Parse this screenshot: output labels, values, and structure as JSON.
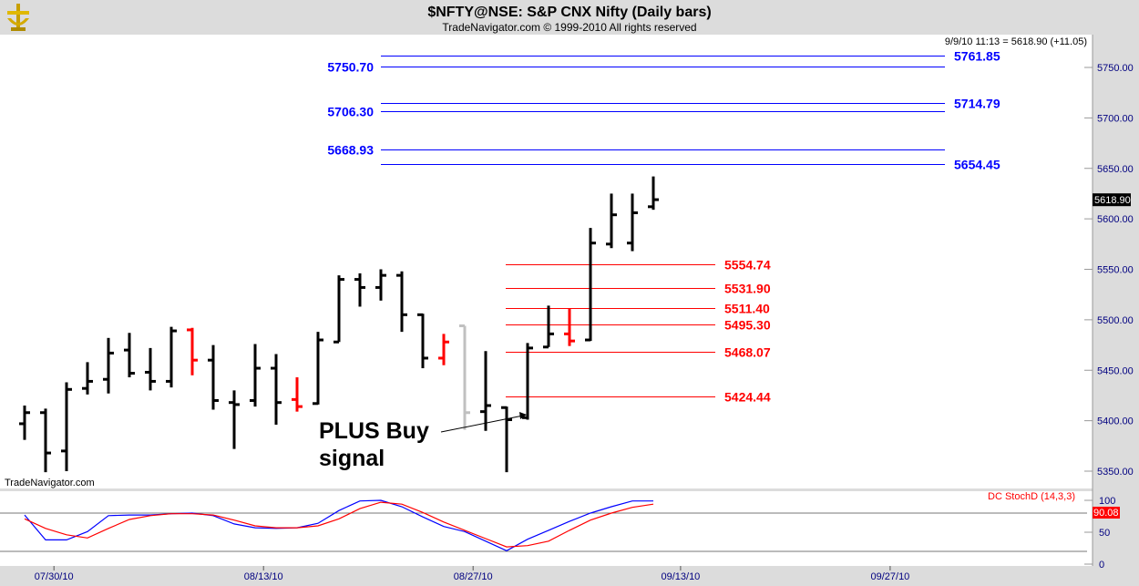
{
  "header": {
    "title": "$NFTY@NSE:  S&P CNX Nifty  (Daily bars)",
    "subtitle": "TradeNavigator.com © 1999-2010 All rights reserved"
  },
  "quote": "9/9/10 11:13 = 5618.90 (+11.05)",
  "watermark": "TradeNavigator.com",
  "annotation": "PLUS Buy signal",
  "annotation_lines": [
    "PLUS Buy",
    "signal"
  ],
  "chart_data": {
    "type": "ohlc",
    "title": "$NFTY@NSE:  S&P CNX Nifty  (Daily bars)",
    "ylim": [
      5330,
      5775
    ],
    "yticks": [
      5350,
      5400,
      5450,
      5500,
      5550,
      5600,
      5650,
      5700,
      5750
    ],
    "ytick_labels": [
      "5350.00",
      "5400.00",
      "5450.00",
      "5500.00",
      "5550.00",
      "5600.00",
      "5650.00",
      "5700.00",
      "5750.00"
    ],
    "last_price_label": "5618.90",
    "x_labels": [
      {
        "label": "07/30/10",
        "bar": 1.4
      },
      {
        "label": "08/13/10",
        "bar": 11.4
      },
      {
        "label": "08/27/10",
        "bar": 21.4
      },
      {
        "label": "09/13/10",
        "bar": 31.3
      },
      {
        "label": "09/27/10",
        "bar": 41.3
      }
    ],
    "bars": [
      {
        "o": 5397,
        "h": 5415,
        "l": 5381,
        "c": 5408,
        "color": "black"
      },
      {
        "o": 5408,
        "h": 5412,
        "l": 5349,
        "c": 5368,
        "color": "black"
      },
      {
        "o": 5370,
        "h": 5438,
        "l": 5350,
        "c": 5431,
        "color": "black"
      },
      {
        "o": 5432,
        "h": 5458,
        "l": 5426,
        "c": 5439,
        "color": "black"
      },
      {
        "o": 5441,
        "h": 5482,
        "l": 5427,
        "c": 5467,
        "color": "black"
      },
      {
        "o": 5470,
        "h": 5487,
        "l": 5443,
        "c": 5447,
        "color": "black"
      },
      {
        "o": 5448,
        "h": 5472,
        "l": 5430,
        "c": 5439,
        "color": "black"
      },
      {
        "o": 5439,
        "h": 5493,
        "l": 5433,
        "c": 5489,
        "color": "black"
      },
      {
        "o": 5490,
        "h": 5492,
        "l": 5445,
        "c": 5460,
        "color": "red"
      },
      {
        "o": 5460,
        "h": 5475,
        "l": 5411,
        "c": 5420,
        "color": "black"
      },
      {
        "o": 5418,
        "h": 5430,
        "l": 5372,
        "c": 5416,
        "color": "black"
      },
      {
        "o": 5420,
        "h": 5476,
        "l": 5414,
        "c": 5452,
        "color": "black"
      },
      {
        "o": 5452,
        "h": 5466,
        "l": 5396,
        "c": 5418,
        "color": "black"
      },
      {
        "o": 5421,
        "h": 5443,
        "l": 5409,
        "c": 5414,
        "color": "red"
      },
      {
        "o": 5417,
        "h": 5488,
        "l": 5416,
        "c": 5480,
        "color": "black"
      },
      {
        "o": 5478,
        "h": 5544,
        "l": 5478,
        "c": 5540,
        "color": "black"
      },
      {
        "o": 5540,
        "h": 5546,
        "l": 5513,
        "c": 5532,
        "color": "black"
      },
      {
        "o": 5532,
        "h": 5550,
        "l": 5519,
        "c": 5544,
        "color": "black"
      },
      {
        "o": 5544,
        "h": 5548,
        "l": 5488,
        "c": 5505,
        "color": "black"
      },
      {
        "o": 5505,
        "h": 5506,
        "l": 5452,
        "c": 5462,
        "color": "black"
      },
      {
        "o": 5462,
        "h": 5486,
        "l": 5455,
        "c": 5478,
        "color": "red"
      },
      {
        "o": 5494,
        "h": 5494,
        "l": 5391,
        "c": 5408,
        "color": "#c0c0c0"
      },
      {
        "o": 5409,
        "h": 5469,
        "l": 5390,
        "c": 5415,
        "color": "black"
      },
      {
        "o": 5413,
        "h": 5414,
        "l": 5349,
        "c": 5401,
        "color": "black"
      },
      {
        "o": 5403,
        "h": 5477,
        "l": 5401,
        "c": 5472,
        "color": "black"
      },
      {
        "o": 5473,
        "h": 5514,
        "l": 5473,
        "c": 5486,
        "color": "black"
      },
      {
        "o": 5486,
        "h": 5511,
        "l": 5474,
        "c": 5479,
        "color": "red"
      },
      {
        "o": 5480,
        "h": 5591,
        "l": 5479,
        "c": 5576,
        "color": "black"
      },
      {
        "o": 5575,
        "h": 5625,
        "l": 5571,
        "c": 5604,
        "color": "black"
      },
      {
        "o": 5576,
        "h": 5625,
        "l": 5568,
        "c": 5606,
        "color": "black"
      },
      {
        "o": 5612,
        "h": 5642,
        "l": 5609,
        "c": 5619,
        "color": "black"
      }
    ],
    "resistance_levels": [
      {
        "value": 5761.85,
        "label": "5761.85",
        "side": "right"
      },
      {
        "value": 5750.7,
        "label": "5750.70",
        "side": "left"
      },
      {
        "value": 5714.79,
        "label": "5714.79",
        "side": "right"
      },
      {
        "value": 5706.3,
        "label": "5706.30",
        "side": "left"
      },
      {
        "value": 5668.93,
        "label": "5668.93",
        "side": "left"
      },
      {
        "value": 5654.45,
        "label": "5654.45",
        "side": "right"
      }
    ],
    "support_levels": [
      {
        "value": 5554.74,
        "label": "5554.74"
      },
      {
        "value": 5531.9,
        "label": "5531.90"
      },
      {
        "value": 5511.4,
        "label": "5511.40"
      },
      {
        "value": 5495.3,
        "label": "5495.30"
      },
      {
        "value": 5468.07,
        "label": "5468.07"
      },
      {
        "value": 5424.44,
        "label": "5424.44"
      }
    ],
    "level_colors": {
      "resistance": "#0000ff",
      "support": "#ff0000"
    },
    "indicator": {
      "name": "DC StochD (14,3,3)",
      "ylim": [
        0,
        100
      ],
      "yticks": [
        0,
        50,
        100
      ],
      "ytick_labels": [
        "0",
        "50",
        "100"
      ],
      "levels": [
        20,
        80
      ],
      "last_value_label": "90.08",
      "series": [
        {
          "name": "%K",
          "color": "#0000ff",
          "values": [
            77,
            38,
            38,
            51,
            76,
            77,
            77,
            79,
            80,
            76,
            63,
            57,
            56,
            57,
            64,
            84,
            99,
            100,
            90,
            74,
            59,
            51,
            36,
            21,
            39,
            53,
            67,
            80,
            90,
            99,
            99
          ]
        },
        {
          "name": "%D",
          "color": "#ff0000",
          "values": [
            71,
            56,
            46,
            41,
            56,
            70,
            76,
            79,
            79,
            77,
            69,
            60,
            57,
            57,
            60,
            71,
            87,
            97,
            94,
            81,
            66,
            53,
            40,
            27,
            29,
            36,
            53,
            69,
            80,
            89,
            94
          ]
        }
      ]
    }
  }
}
